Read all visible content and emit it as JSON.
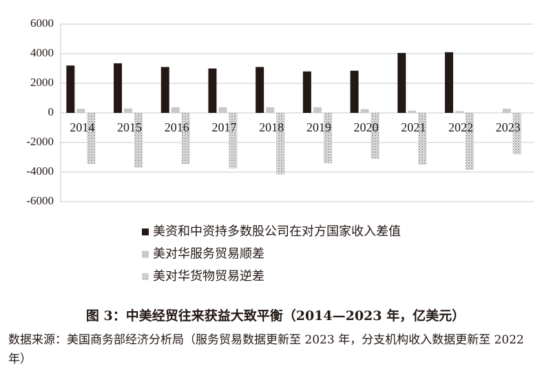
{
  "chart_data": {
    "type": "bar",
    "title": "图 3：中美经贸往来获益大致平衡（2014—2023 年，亿美元）",
    "source": "数据来源：美国商务部经济分析局（服务贸易数据更新至 2023 年，分支机构收入数据更新至 2022 年）",
    "categories": [
      "2014",
      "2015",
      "2016",
      "2017",
      "2018",
      "2019",
      "2020",
      "2021",
      "2022",
      "2023"
    ],
    "series": [
      {
        "name": "美资和中资持多数股公司在对方国家收入差值",
        "color": "#231815",
        "values": [
          3200,
          3350,
          3100,
          3000,
          3100,
          2800,
          2850,
          4050,
          4100,
          null
        ]
      },
      {
        "name": "美对华服务贸易顺差",
        "color": "#c8c8c8",
        "values": [
          280,
          300,
          380,
          380,
          380,
          380,
          250,
          150,
          120,
          280
        ]
      },
      {
        "name": "美对华货物贸易逆差",
        "color": "#b0b0b0",
        "pattern": "dots",
        "values": [
          -3450,
          -3700,
          -3450,
          -3750,
          -4150,
          -3400,
          -3100,
          -3500,
          -3850,
          -2800
        ]
      }
    ],
    "ylim": [
      -6000,
      6000
    ],
    "yticks": [
      -6000,
      -4000,
      -2000,
      0,
      2000,
      4000,
      6000
    ],
    "grid": true
  }
}
